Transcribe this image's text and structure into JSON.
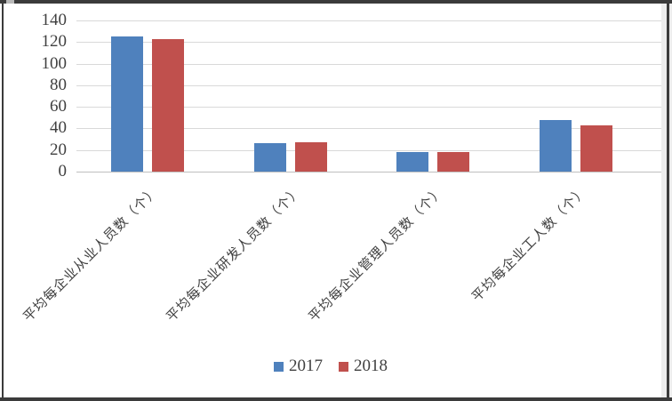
{
  "chart_data": {
    "type": "bar",
    "title": "",
    "xlabel": "",
    "ylabel": "",
    "categories": [
      "平均每企业从业人员数（个）",
      "平均每企业研发人员数（个）",
      "平均每企业管理人员数（个）",
      "平均每企业工人数（个）"
    ],
    "series": [
      {
        "name": "2017",
        "color": "#4F81BD",
        "values": [
          125,
          26,
          18,
          48
        ]
      },
      {
        "name": "2018",
        "color": "#C0504D",
        "values": [
          123,
          27,
          18,
          43
        ]
      }
    ],
    "ylim": [
      0,
      140
    ],
    "ytick_step": 20,
    "ytick_labels": [
      "0",
      "20",
      "40",
      "60",
      "80",
      "100",
      "120",
      "140"
    ],
    "grid": "horizontal",
    "legend_position": "bottom"
  },
  "theme": {
    "background": "#FFFFFF",
    "gridline_color": "#D9D9D9",
    "axis_line_color": "#BFBFBF",
    "text_color": "#404040",
    "window_edge_color": "#3B3B3B"
  }
}
